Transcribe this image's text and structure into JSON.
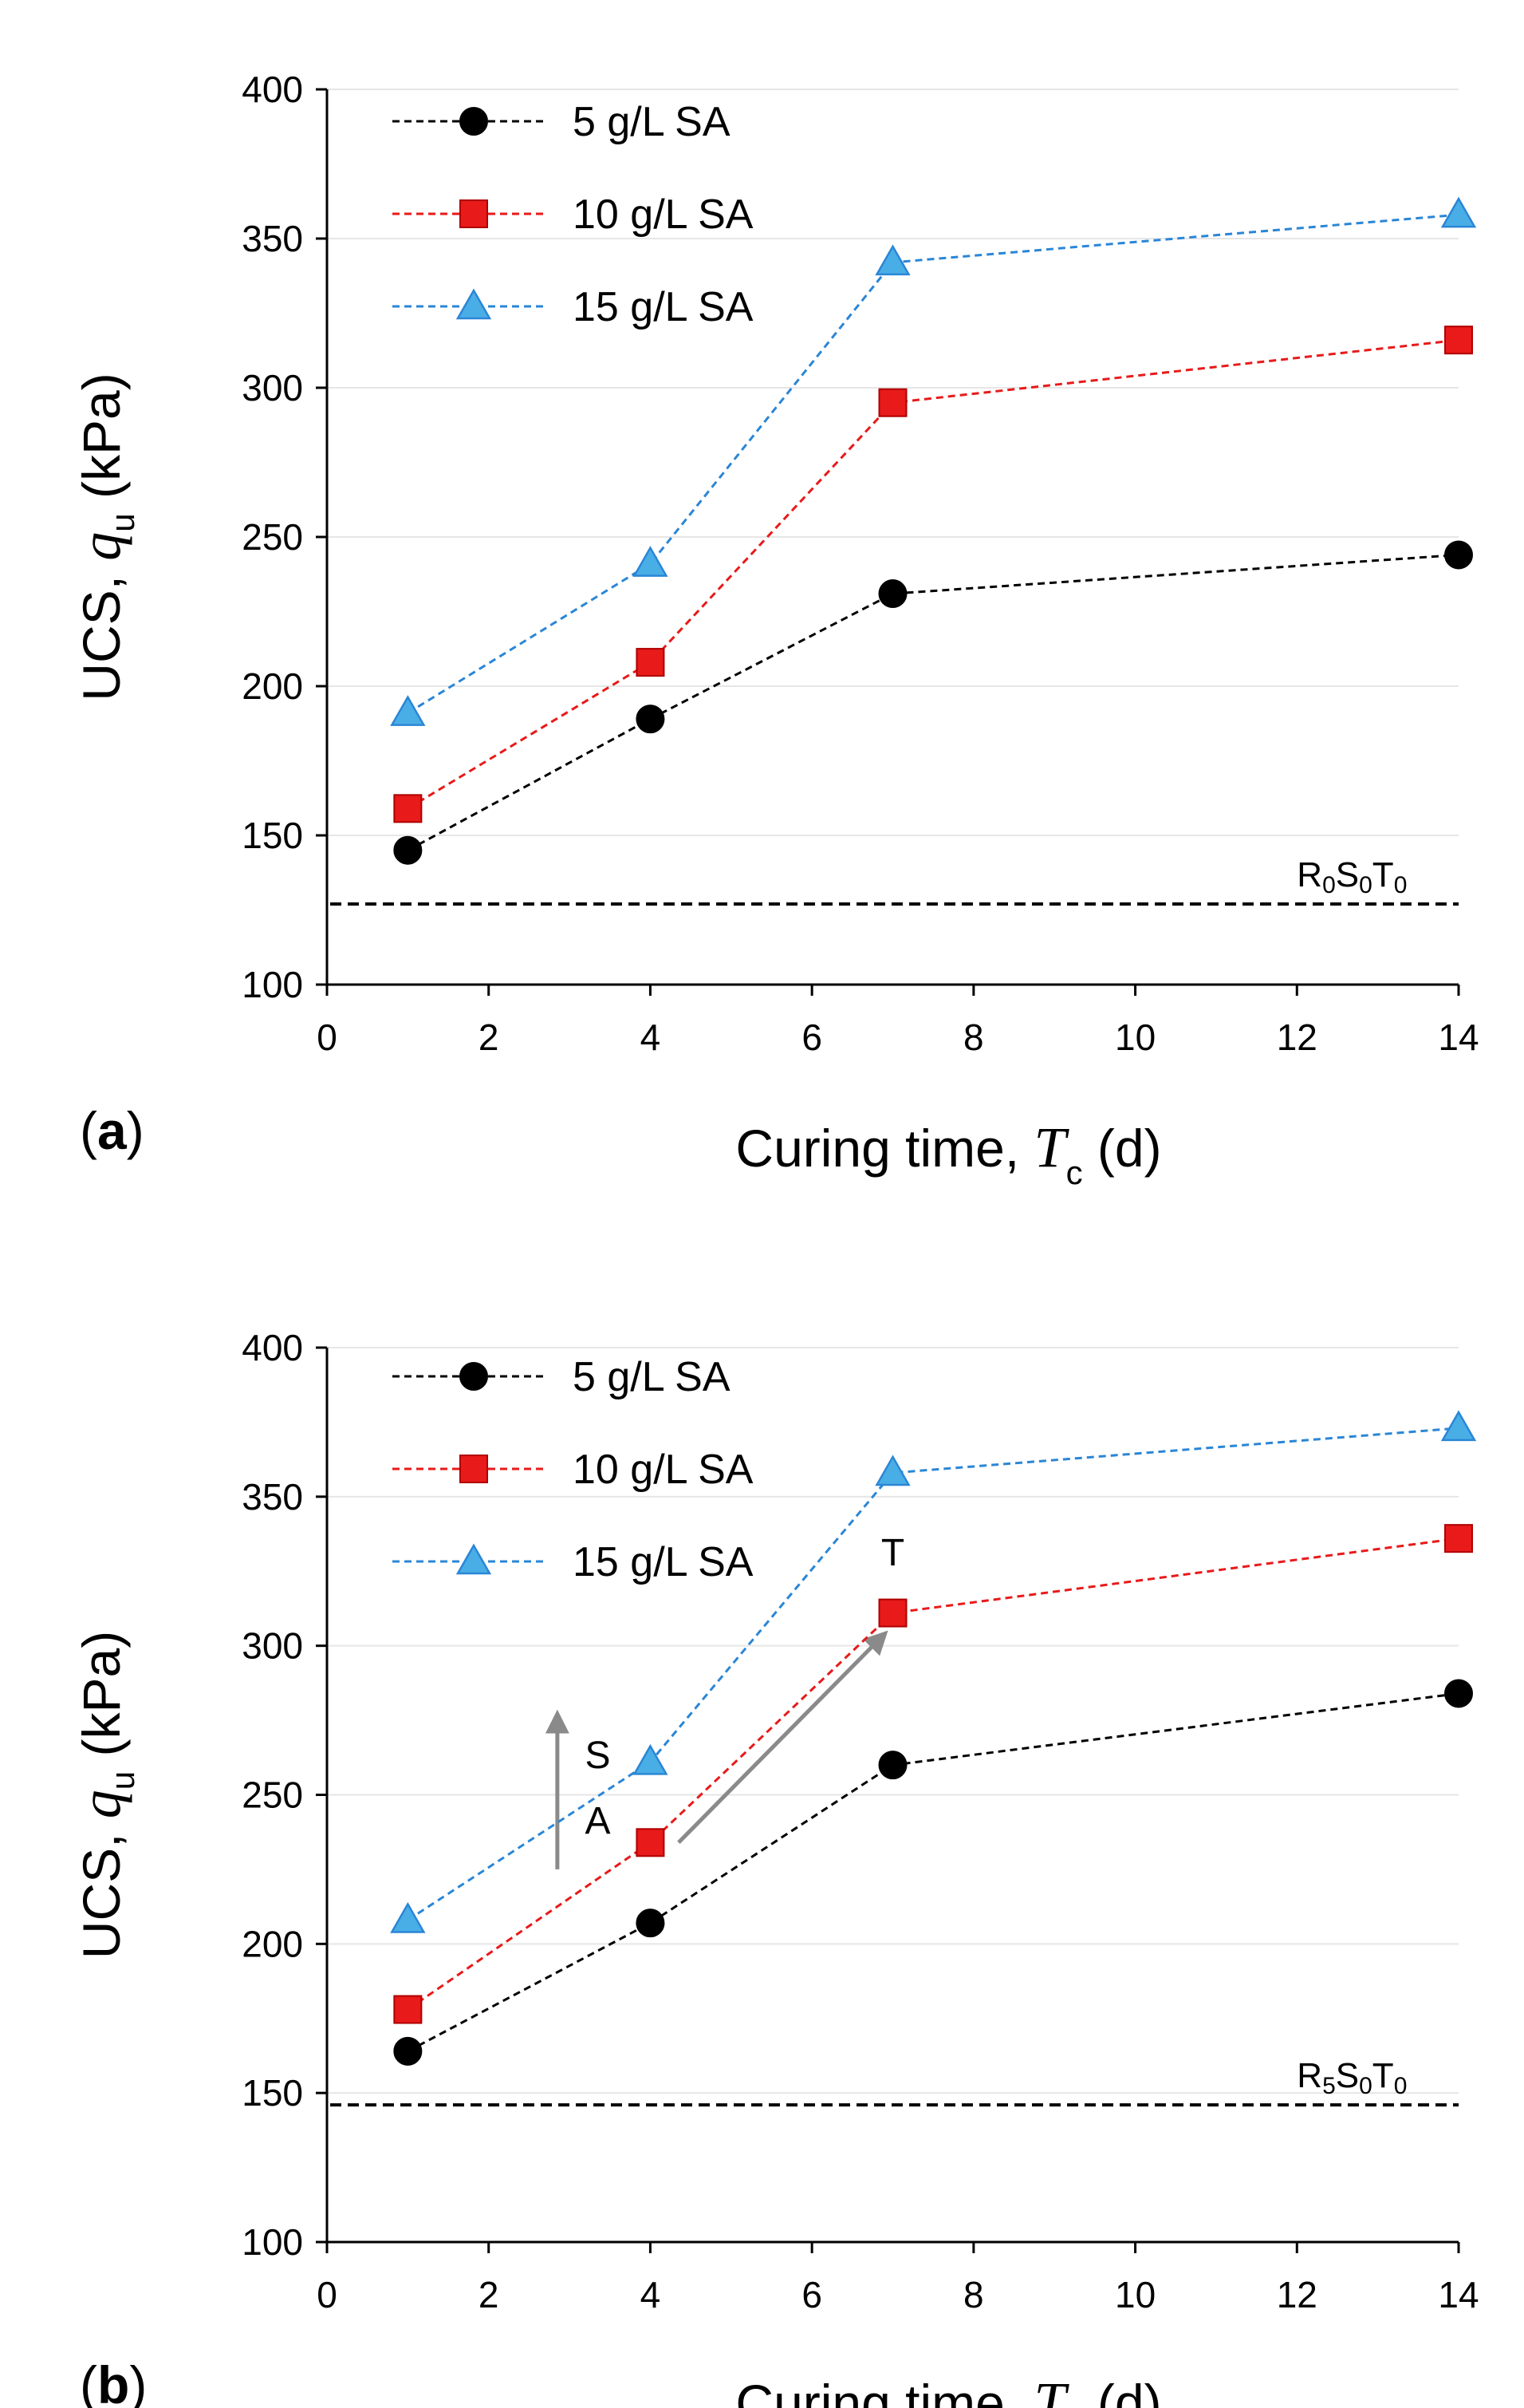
{
  "chart_data": [
    {
      "panel_label": "a",
      "type": "line",
      "xlabel": {
        "prefix": "Curing time, ",
        "symbol": "T",
        "sub": "c",
        "suffix": " (d)"
      },
      "ylabel": {
        "prefix": "UCS, ",
        "symbol": "q",
        "sub": "u",
        "suffix": " (kPa)"
      },
      "xlim": [
        0,
        14
      ],
      "ylim": [
        100,
        400
      ],
      "xticks": [
        0,
        2,
        4,
        6,
        8,
        10,
        12,
        14
      ],
      "yticks": [
        100,
        150,
        200,
        250,
        300,
        350,
        400
      ],
      "grid": "horizontal",
      "legend": "top-left",
      "x": [
        1,
        4,
        7,
        14
      ],
      "series": [
        {
          "name": "5 g/L SA",
          "marker": "circle",
          "color": "#000000",
          "values": [
            145,
            189,
            231,
            244
          ]
        },
        {
          "name": "10 g/L SA",
          "marker": "square",
          "color": "#e81a1a",
          "values": [
            159,
            208,
            295,
            316
          ]
        },
        {
          "name": "15 g/L SA",
          "marker": "triangle",
          "color": "#2a86d6",
          "values": [
            191,
            241,
            342,
            358
          ]
        }
      ],
      "reference": {
        "value": 127,
        "label": {
          "base1": "R",
          "sub1": "0",
          "base2": "S",
          "sub2": "0",
          "base3": "T",
          "sub3": "0"
        }
      },
      "annotations": []
    },
    {
      "panel_label": "b",
      "type": "line",
      "xlabel": {
        "prefix": "Curing time, ",
        "symbol": "T",
        "sub": "c",
        "suffix": " (d)"
      },
      "ylabel": {
        "prefix": "UCS, ",
        "symbol": "q",
        "sub": "u",
        "suffix": " (kPa)"
      },
      "xlim": [
        0,
        14
      ],
      "ylim": [
        100,
        400
      ],
      "xticks": [
        0,
        2,
        4,
        6,
        8,
        10,
        12,
        14
      ],
      "yticks": [
        100,
        150,
        200,
        250,
        300,
        350,
        400
      ],
      "grid": "horizontal",
      "legend": "top-left",
      "x": [
        1,
        4,
        7,
        14
      ],
      "series": [
        {
          "name": "5 g/L SA",
          "marker": "circle",
          "color": "#000000",
          "values": [
            164,
            207,
            260,
            284
          ]
        },
        {
          "name": "10 g/L SA",
          "marker": "square",
          "color": "#e81a1a",
          "values": [
            178,
            234,
            311,
            336
          ]
        },
        {
          "name": "15 g/L SA",
          "marker": "triangle",
          "color": "#2a86d6",
          "values": [
            208,
            261,
            358,
            373
          ]
        }
      ],
      "reference": {
        "value": 146,
        "label": {
          "base1": "R",
          "sub1": "5",
          "base2": "S",
          "sub2": "0",
          "base3": "T",
          "sub3": "0"
        }
      },
      "annotations": [
        {
          "text": "S",
          "arrow_from": [
            2.85,
            225
          ],
          "arrow_to": [
            2.85,
            277
          ]
        },
        {
          "text": "A",
          "arrow_from": [
            4.35,
            234
          ],
          "arrow_to": [
            6.9,
            304
          ]
        },
        {
          "text": "T",
          "arrow_from": null,
          "arrow_to": null
        }
      ]
    }
  ]
}
